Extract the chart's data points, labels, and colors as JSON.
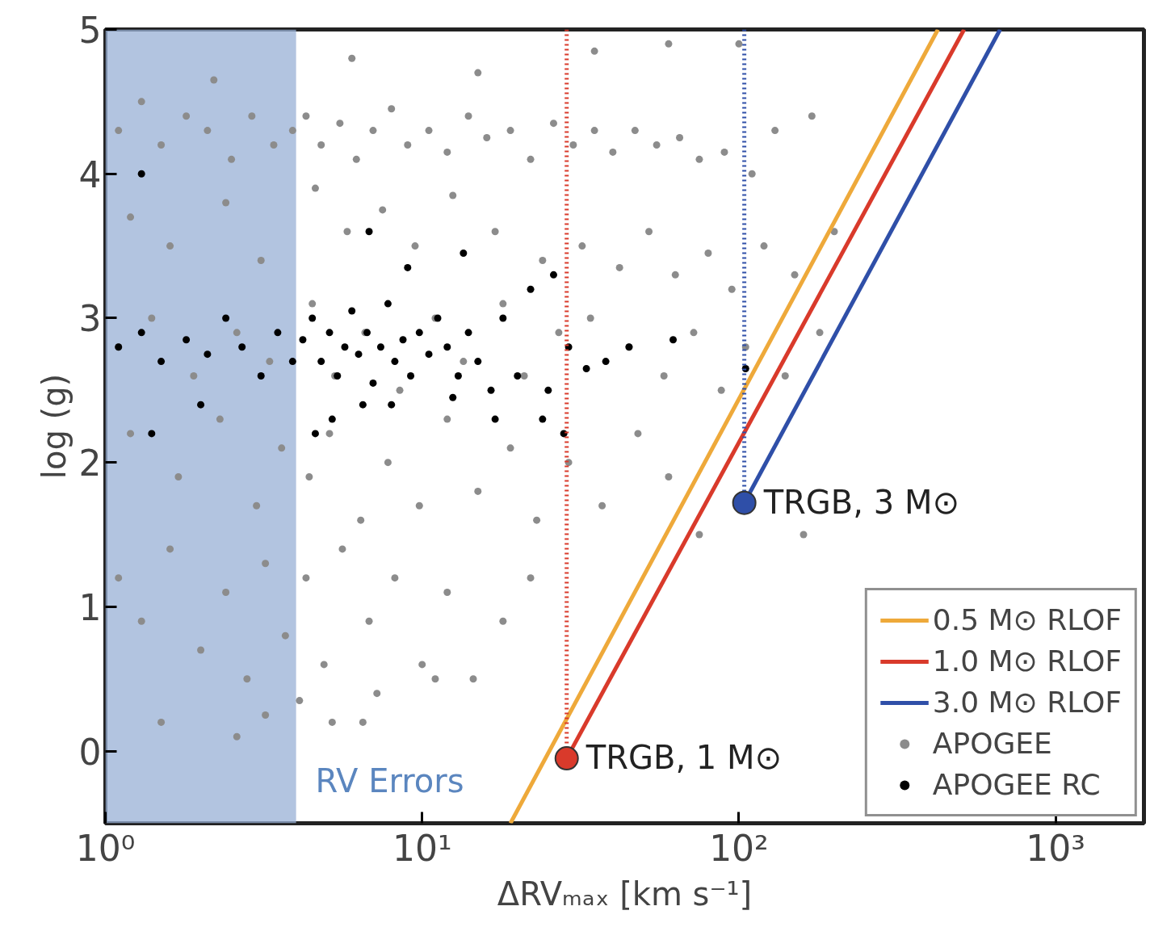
{
  "chart_data": {
    "type": "scatter",
    "xlabel": "ΔRVₘₐₓ [km s⁻¹]",
    "ylabel": "log (g)",
    "log": "x",
    "xlim": [
      1,
      1900
    ],
    "ylim": [
      -0.5,
      5
    ],
    "xticks": [
      {
        "value": 1,
        "label": "10⁰"
      },
      {
        "value": 10,
        "label": "10¹"
      },
      {
        "value": 100,
        "label": "10²"
      },
      {
        "value": 1000,
        "label": "10³"
      }
    ],
    "yticks": [
      0,
      1,
      2,
      3,
      4,
      5
    ],
    "grid": false,
    "legend": "bottom right",
    "bands": [
      {
        "axis": "x",
        "from": 1,
        "to": 4,
        "label": "RV Errors",
        "color": "#98b0d6"
      }
    ],
    "series": [
      {
        "name": "APOGEE",
        "color": "#8c8c8c",
        "x": [
          1.1,
          1.3,
          1.5,
          1.8,
          2.1,
          2.5,
          2.9,
          3.4,
          3.9,
          4.3,
          4.8,
          5.5,
          6.2,
          7.0,
          8.0,
          9.0,
          10.5,
          12,
          14,
          16,
          19,
          22,
          26,
          30,
          35,
          40,
          47,
          55,
          65,
          75,
          90,
          110,
          130,
          170,
          2.2,
          6,
          15,
          35,
          60,
          100,
          1.2,
          1.6,
          2.4,
          3.1,
          4.6,
          5.8,
          7.5,
          9.5,
          12.5,
          17,
          24,
          32,
          42,
          52,
          63,
          80,
          95,
          120,
          150,
          200,
          180,
          1.1,
          1.4,
          1.9,
          2.6,
          3.3,
          4.5,
          5.3,
          6.6,
          8.5,
          11,
          13.5,
          18,
          21,
          27,
          34,
          45,
          58,
          72,
          88,
          105,
          140,
          1.2,
          1.7,
          2.3,
          3.0,
          3.6,
          4.4,
          5.1,
          6.4,
          7.8,
          9.8,
          12,
          15,
          19,
          23,
          29,
          37,
          48,
          60,
          75,
          160,
          1.1,
          1.3,
          1.6,
          2.0,
          2.4,
          2.8,
          3.2,
          3.7,
          4.3,
          4.9,
          5.6,
          6.8,
          8.2,
          10,
          12,
          14.5,
          18,
          22,
          5.2,
          7.2,
          11,
          1.5,
          2.6,
          6.5,
          4.1,
          3.2
        ],
        "values": [
          4.3,
          4.5,
          4.2,
          4.4,
          4.3,
          4.1,
          4.4,
          4.2,
          4.3,
          4.4,
          4.2,
          4.35,
          4.1,
          4.3,
          4.45,
          4.2,
          4.3,
          4.15,
          4.4,
          4.25,
          4.3,
          4.1,
          4.35,
          4.2,
          4.3,
          4.15,
          4.3,
          4.2,
          4.25,
          4.1,
          4.15,
          4.0,
          4.3,
          4.4,
          4.65,
          4.8,
          4.7,
          4.85,
          4.9,
          4.9,
          3.7,
          3.5,
          3.8,
          3.4,
          3.9,
          3.6,
          3.75,
          3.5,
          3.85,
          3.6,
          3.4,
          3.5,
          3.35,
          3.6,
          3.3,
          3.45,
          3.2,
          3.5,
          3.3,
          3.6,
          2.9,
          2.8,
          3.0,
          2.6,
          2.9,
          2.7,
          3.1,
          2.6,
          2.9,
          2.5,
          3.0,
          2.7,
          3.1,
          2.6,
          2.9,
          3.0,
          2.8,
          2.6,
          2.9,
          2.5,
          2.8,
          2.6,
          2.2,
          1.9,
          2.3,
          1.7,
          2.1,
          1.9,
          2.2,
          1.6,
          2.0,
          1.7,
          2.3,
          1.8,
          2.1,
          1.6,
          2.0,
          1.7,
          2.2,
          1.9,
          1.5,
          1.5,
          1.2,
          0.9,
          1.4,
          0.7,
          1.1,
          0.5,
          1.3,
          0.8,
          1.2,
          0.6,
          1.4,
          0.9,
          1.2,
          0.6,
          1.1,
          0.5,
          0.9,
          1.2,
          0.2,
          0.4,
          0.5,
          0.2,
          0.1,
          0.2,
          0.35,
          0.25
        ]
      },
      {
        "name": "APOGEE RC",
        "color": "#000000",
        "x": [
          1.1,
          1.3,
          1.5,
          1.8,
          2.1,
          2.4,
          2.7,
          3.1,
          3.5,
          3.9,
          4.2,
          4.5,
          4.8,
          5.1,
          5.4,
          5.7,
          6.0,
          6.3,
          6.7,
          7.0,
          7.4,
          7.8,
          8.2,
          8.7,
          9.2,
          9.8,
          10.5,
          11.2,
          12,
          13,
          14,
          15,
          16.5,
          18,
          20,
          22,
          24,
          26,
          29,
          33,
          38,
          45,
          62,
          105,
          5.2,
          6.5,
          4.6,
          8,
          12.5,
          17,
          9,
          6.8,
          13.5,
          1.4,
          2.0,
          1.3,
          28,
          25
        ],
        "values": [
          2.8,
          2.9,
          2.7,
          2.85,
          2.75,
          3.0,
          2.8,
          2.6,
          2.9,
          2.7,
          2.85,
          3.0,
          2.7,
          2.9,
          2.6,
          2.8,
          3.05,
          2.75,
          2.9,
          2.55,
          2.8,
          3.1,
          2.7,
          2.85,
          2.6,
          2.9,
          2.75,
          3.0,
          2.8,
          2.6,
          2.9,
          2.7,
          2.5,
          3.0,
          2.6,
          3.2,
          2.3,
          3.3,
          2.8,
          2.65,
          2.7,
          2.8,
          2.85,
          2.65,
          2.3,
          2.4,
          2.2,
          2.4,
          2.45,
          2.3,
          3.35,
          3.6,
          3.45,
          2.2,
          2.4,
          4.0,
          2.2,
          2.5
        ]
      },
      {
        "name": "0.5 M⊙ RLOF",
        "type": "line",
        "color": "#eea93a",
        "x": [
          19,
          425
        ],
        "values": [
          -0.5,
          5
        ]
      },
      {
        "name": "1.0 M⊙ RLOF",
        "type": "line",
        "color": "#d93a2b",
        "x": [
          28.6,
          514
        ],
        "values": [
          -0.05,
          5
        ]
      },
      {
        "name": "3.0 M⊙ RLOF",
        "type": "line",
        "color": "#2f4fa8",
        "x": [
          104,
          668
        ],
        "values": [
          1.72,
          5
        ]
      },
      {
        "type": "line",
        "line_style": "dotted",
        "color": "#d93a2b",
        "x": [
          28.6,
          28.6
        ],
        "values": [
          5,
          -0.05
        ]
      },
      {
        "type": "line",
        "line_style": "dotted",
        "color": "#2f4fa8",
        "x": [
          104,
          104
        ],
        "values": [
          5,
          1.72
        ]
      },
      {
        "type": "scatter",
        "color": "#d93a2b",
        "x": [
          28.6
        ],
        "values": [
          -0.05
        ]
      },
      {
        "type": "scatter",
        "color": "#2f4fa8",
        "x": [
          104
        ],
        "values": [
          1.72
        ]
      }
    ],
    "annotations": [
      {
        "text": "TRGB, 1 M⊙",
        "x": 28.6,
        "y": -0.05
      },
      {
        "text": "TRGB, 3 M⊙",
        "x": 104,
        "y": 1.72
      }
    ]
  }
}
